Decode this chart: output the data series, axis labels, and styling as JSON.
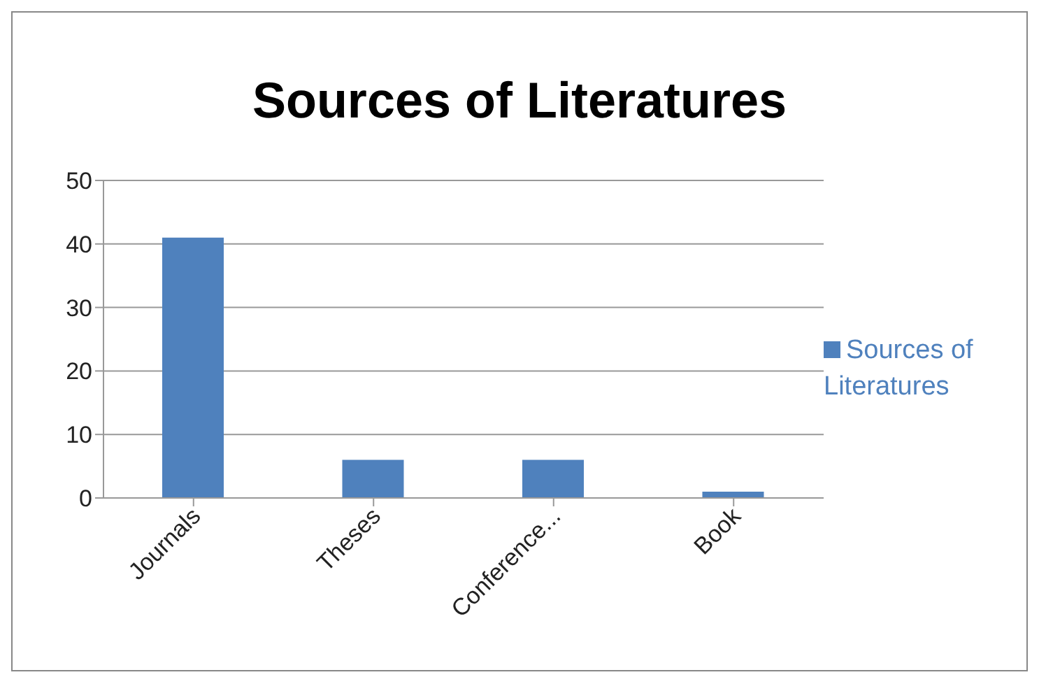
{
  "chart_data": {
    "type": "bar",
    "title": "Sources of Literatures",
    "categories": [
      "Journals",
      "Theses",
      "Conference...",
      "Book"
    ],
    "series": [
      {
        "name": "Sources of Literatures",
        "color": "#4f81bd",
        "values": [
          41,
          6,
          6,
          1
        ]
      }
    ],
    "ylim": [
      0,
      50
    ],
    "yticks": [
      0,
      10,
      20,
      30,
      40,
      50
    ],
    "grid": "y",
    "legend": "right"
  }
}
